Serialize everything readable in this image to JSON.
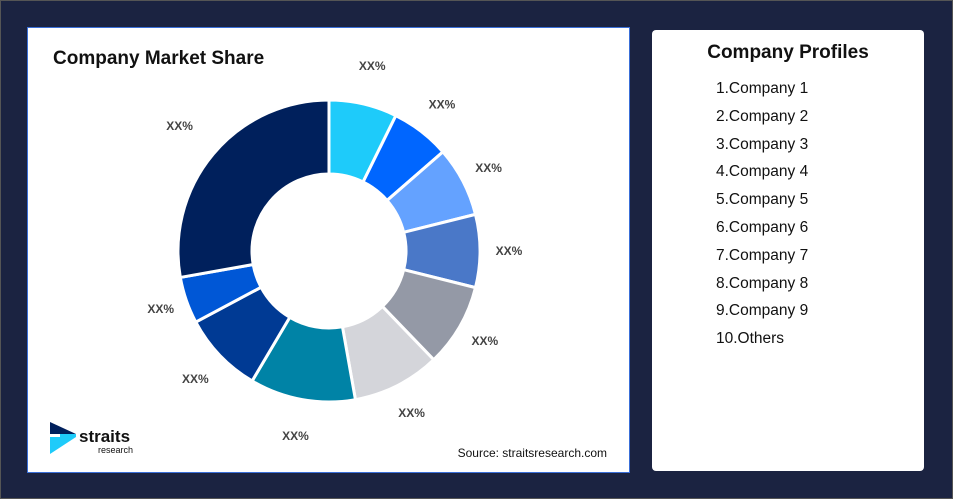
{
  "chart_data": {
    "type": "pie",
    "title": "Company Market Share",
    "donut": true,
    "labels": [
      "XX%",
      "XX%",
      "XX%",
      "XX%",
      "XX%",
      "XX%",
      "XX%",
      "XX%",
      "XX%",
      "XX%"
    ],
    "values": [
      7.3,
      6.3,
      7.5,
      7.8,
      8.9,
      9.4,
      11.3,
      8.7,
      5.0,
      27.8
    ],
    "colors": [
      "#1ecbfa",
      "#0066ff",
      "#64a2ff",
      "#4a78c8",
      "#9499a6",
      "#d4d5da",
      "#0083a6",
      "#003a94",
      "#0057d6",
      "#00205c"
    ]
  },
  "source": "Source: straitsresearch.com",
  "logo": {
    "name": "straits",
    "sub": "research"
  },
  "profiles": {
    "title": "Company Profiles",
    "items": [
      "1.Company 1",
      "2.Company 2",
      "3.Company 3",
      "4.Company 4",
      "5.Company 5",
      "6.Company 6",
      "7.Company 7",
      "8.Company 8",
      "9.Company 9",
      "10.Others"
    ]
  }
}
